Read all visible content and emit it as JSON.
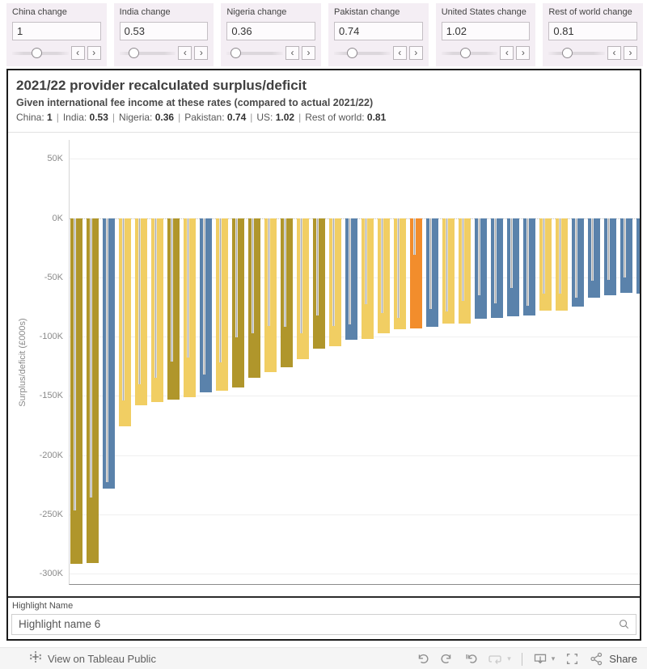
{
  "params": [
    {
      "label": "China change",
      "value": "1",
      "slider_pct": 43
    },
    {
      "label": "India change",
      "value": "0.53",
      "slider_pct": 25
    },
    {
      "label": "Nigeria change",
      "value": "0.36",
      "slider_pct": 15
    },
    {
      "label": "Pakistan change",
      "value": "0.74",
      "slider_pct": 31
    },
    {
      "label": "United States change",
      "value": "1.02",
      "slider_pct": 42
    },
    {
      "label": "Rest of world change",
      "value": "0.81",
      "slider_pct": 33
    }
  ],
  "param_spinners": {
    "decrement": "‹",
    "increment": "›"
  },
  "dashboard": {
    "title": "2021/22 provider recalculated surplus/deficit",
    "subtitle": "Given international fee income at these rates (compared to actual 2021/22)",
    "rates": [
      {
        "label": "China",
        "value": "1"
      },
      {
        "label": "India",
        "value": "0.53"
      },
      {
        "label": "Nigeria",
        "value": "0.36"
      },
      {
        "label": "Pakistan",
        "value": "0.74"
      },
      {
        "label": "US",
        "value": "1.02"
      },
      {
        "label": "Rest of world",
        "value": "0.81"
      }
    ],
    "rates_separator": "|"
  },
  "chart_data": {
    "type": "bar",
    "title": "2021/22 provider recalculated surplus/deficit",
    "subtitle": "Given international fee income at these rates (compared to actual 2021/22)",
    "ylabel": "Surplus/deficit (£000s)",
    "xlabel": "",
    "y_tick_values_k": [
      50,
      0,
      -50,
      -100,
      -150,
      -200,
      -250,
      -300
    ],
    "y_tick_labels": [
      "50K",
      "0K",
      "-50K",
      "-100K",
      "-150K",
      "-200K",
      "-250K",
      "-300K"
    ],
    "axis_range_k": [
      -309,
      66
    ],
    "grid": "horizontal-light, dotted zero line",
    "legend": "none",
    "unit": "£000s",
    "palette": {
      "olive": "#b0962b",
      "yellow": "#f1ce63",
      "blue": "#5a82ab",
      "orange": "#f28d2c",
      "marker": "#ababab"
    },
    "series_note": "recalculated_k = bar end, actual_k = inner gray marker line end, both in £000s (thousands)",
    "bars": [
      {
        "recalculated_k": -292,
        "actual_k": -247,
        "color": "olive"
      },
      {
        "recalculated_k": -291,
        "actual_k": -236,
        "color": "olive"
      },
      {
        "recalculated_k": -228,
        "actual_k": -223,
        "color": "blue"
      },
      {
        "recalculated_k": -176,
        "actual_k": -154,
        "color": "yellow"
      },
      {
        "recalculated_k": -158,
        "actual_k": -140,
        "color": "yellow"
      },
      {
        "recalculated_k": -155,
        "actual_k": -135,
        "color": "yellow"
      },
      {
        "recalculated_k": -153,
        "actual_k": -121,
        "color": "olive"
      },
      {
        "recalculated_k": -151,
        "actual_k": -118,
        "color": "yellow"
      },
      {
        "recalculated_k": -147,
        "actual_k": -132,
        "color": "blue"
      },
      {
        "recalculated_k": -146,
        "actual_k": -122,
        "color": "yellow"
      },
      {
        "recalculated_k": -143,
        "actual_k": -101,
        "color": "olive"
      },
      {
        "recalculated_k": -135,
        "actual_k": -97,
        "color": "olive"
      },
      {
        "recalculated_k": -130,
        "actual_k": -91,
        "color": "yellow"
      },
      {
        "recalculated_k": -126,
        "actual_k": -92,
        "color": "olive"
      },
      {
        "recalculated_k": -119,
        "actual_k": -97,
        "color": "yellow"
      },
      {
        "recalculated_k": -110,
        "actual_k": -82,
        "color": "olive"
      },
      {
        "recalculated_k": -108,
        "actual_k": -91,
        "color": "yellow"
      },
      {
        "recalculated_k": -103,
        "actual_k": -90,
        "color": "blue"
      },
      {
        "recalculated_k": -102,
        "actual_k": -73,
        "color": "yellow"
      },
      {
        "recalculated_k": -97,
        "actual_k": -80,
        "color": "yellow"
      },
      {
        "recalculated_k": -94,
        "actual_k": -84,
        "color": "yellow"
      },
      {
        "recalculated_k": -93,
        "actual_k": -31,
        "color": "orange"
      },
      {
        "recalculated_k": -92,
        "actual_k": -77,
        "color": "blue"
      },
      {
        "recalculated_k": -89,
        "actual_k": -79,
        "color": "yellow"
      },
      {
        "recalculated_k": -89,
        "actual_k": -70,
        "color": "yellow"
      },
      {
        "recalculated_k": -85,
        "actual_k": -65,
        "color": "blue"
      },
      {
        "recalculated_k": -84,
        "actual_k": -72,
        "color": "blue"
      },
      {
        "recalculated_k": -83,
        "actual_k": -59,
        "color": "blue"
      },
      {
        "recalculated_k": -82,
        "actual_k": -74,
        "color": "blue"
      },
      {
        "recalculated_k": -78,
        "actual_k": -64,
        "color": "yellow"
      },
      {
        "recalculated_k": -78,
        "actual_k": -64,
        "color": "yellow"
      },
      {
        "recalculated_k": -75,
        "actual_k": -67,
        "color": "blue"
      },
      {
        "recalculated_k": -67,
        "actual_k": -53,
        "color": "blue"
      },
      {
        "recalculated_k": -65,
        "actual_k": -52,
        "color": "blue"
      },
      {
        "recalculated_k": -63,
        "actual_k": -50,
        "color": "blue"
      },
      {
        "recalculated_k": -64,
        "actual_k": -52,
        "color": "blue"
      }
    ]
  },
  "highlight": {
    "label": "Highlight Name",
    "value": "Highlight name 6",
    "icon": "magnifier-icon"
  },
  "footer": {
    "brand_label": "View on Tableau Public",
    "share_label": "Share",
    "icons": [
      "undo-icon",
      "redo-icon",
      "reset-icon",
      "refresh-icon",
      "refresh-caret-icon",
      "divider",
      "download-icon",
      "download-caret-icon",
      "fullscreen-icon",
      "share-icon"
    ]
  }
}
